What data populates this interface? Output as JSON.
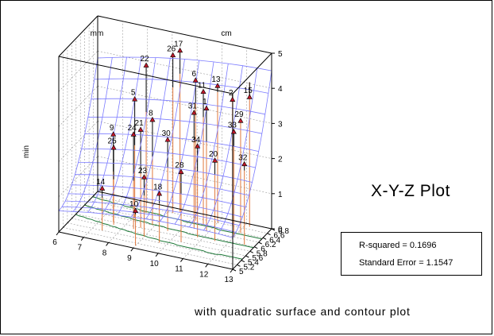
{
  "chart_data": {
    "type": "scatter",
    "subtype": "3d-scatter-with-quadratic-surface-and-contour",
    "title": "X-Y-Z Plot",
    "subtitle": "with quadratic surface and contour plot",
    "x_axis": {
      "label": "mm",
      "range": [
        6,
        13
      ],
      "ticks": [
        "6",
        "7",
        "8",
        "9",
        "10",
        "11",
        "12",
        "13"
      ]
    },
    "y_axis": {
      "label": "cm",
      "range": [
        5,
        6.8
      ],
      "ticks": [
        "5",
        "5.2",
        "5.4",
        "5.6",
        "5.8",
        "6",
        "6.2",
        "6.4",
        "6.6",
        "6.8"
      ]
    },
    "z_axis": {
      "label": "min",
      "range": [
        0,
        5
      ],
      "ticks": [
        "0",
        "1",
        "2",
        "3",
        "4",
        "5"
      ]
    },
    "points": [
      {
        "label": "22",
        "x": 8.3,
        "y": 6.4,
        "z": 4.2
      },
      {
        "label": "26",
        "x": 9.2,
        "y": 6.6,
        "z": 4.5
      },
      {
        "label": "17",
        "x": 9.4,
        "y": 6.7,
        "z": 4.6
      },
      {
        "label": "6",
        "x": 10.2,
        "y": 6.5,
        "z": 4.0
      },
      {
        "label": "11",
        "x": 10.6,
        "y": 6.4,
        "z": 3.8
      },
      {
        "label": "13",
        "x": 11.0,
        "y": 6.6,
        "z": 3.9
      },
      {
        "label": "15",
        "x": 12.2,
        "y": 6.7,
        "z": 3.7
      },
      {
        "label": "1",
        "x": 10.9,
        "y": 6.2,
        "z": 3.5
      },
      {
        "label": "2",
        "x": 11.6,
        "y": 6.6,
        "z": 3.6
      },
      {
        "label": "5",
        "x": 8.1,
        "y": 6.1,
        "z": 3.4
      },
      {
        "label": "21",
        "x": 8.6,
        "y": 5.8,
        "z": 2.8
      },
      {
        "label": "8",
        "x": 8.9,
        "y": 6.0,
        "z": 3.0
      },
      {
        "label": "31",
        "x": 10.4,
        "y": 6.2,
        "z": 3.3
      },
      {
        "label": "29",
        "x": 12.1,
        "y": 6.4,
        "z": 3.2
      },
      {
        "label": "24",
        "x": 8.4,
        "y": 5.7,
        "z": 2.7
      },
      {
        "label": "30",
        "x": 9.6,
        "y": 5.9,
        "z": 2.6
      },
      {
        "label": "34",
        "x": 10.8,
        "y": 5.9,
        "z": 2.6
      },
      {
        "label": "33",
        "x": 12.0,
        "y": 6.2,
        "z": 3.0
      },
      {
        "label": "20",
        "x": 11.5,
        "y": 5.9,
        "z": 2.3
      },
      {
        "label": "32",
        "x": 12.6,
        "y": 6.0,
        "z": 2.3
      },
      {
        "label": "9",
        "x": 7.5,
        "y": 5.8,
        "z": 2.5
      },
      {
        "label": "25",
        "x": 7.6,
        "y": 5.7,
        "z": 2.2
      },
      {
        "label": "28",
        "x": 10.4,
        "y": 5.6,
        "z": 2.0
      },
      {
        "label": "23",
        "x": 9.0,
        "y": 5.5,
        "z": 1.7
      },
      {
        "label": "18",
        "x": 9.7,
        "y": 5.4,
        "z": 1.4
      },
      {
        "label": "14",
        "x": 7.4,
        "y": 5.4,
        "z": 1.2
      },
      {
        "label": "10",
        "x": 9.0,
        "y": 5.1,
        "z": 1.0
      }
    ],
    "grid": true
  },
  "stats": {
    "r_squared": "R-squared = 0.1696",
    "std_error": "Standard Error = 1.1547"
  },
  "colors": {
    "surface": "#7b7bff",
    "contour": "#1f7a3a",
    "drop_line": "#e0783c",
    "marker_fill": "#c0182a",
    "axes": "#000000",
    "grid": "#999999"
  }
}
